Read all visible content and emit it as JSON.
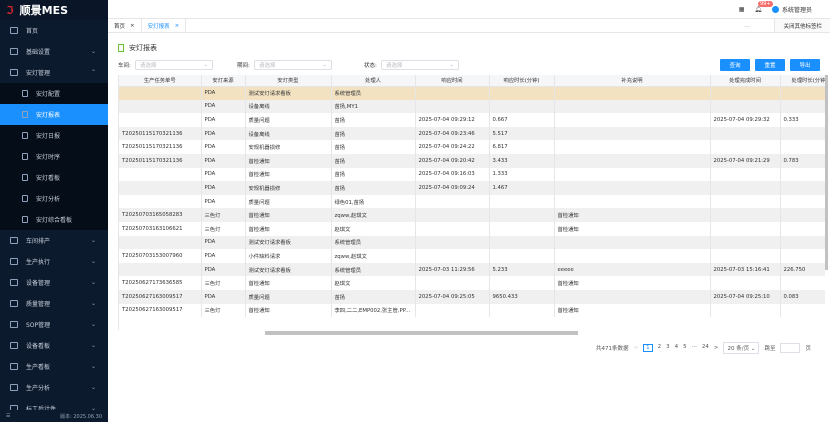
{
  "app": {
    "logo_text": "顺景MES",
    "version": "版本: 2025.06.30"
  },
  "sidebar": {
    "items": [
      {
        "label": "首页",
        "icon": "home-icon"
      },
      {
        "label": "基础设置",
        "icon": "settings-icon",
        "chevron": "⌄"
      },
      {
        "label": "安灯管理",
        "icon": "andon-icon",
        "chevron": "⌃"
      }
    ],
    "sub": [
      {
        "label": "安灯配置"
      },
      {
        "label": "安灯报表",
        "active": true
      },
      {
        "label": "安灯日报"
      },
      {
        "label": "安灯时序"
      },
      {
        "label": "安灯看板"
      },
      {
        "label": "安灯分析"
      },
      {
        "label": "安灯综合看板"
      }
    ],
    "items2": [
      {
        "label": "车间排产"
      },
      {
        "label": "生产执行"
      },
      {
        "label": "设备管理"
      },
      {
        "label": "质量管理"
      },
      {
        "label": "SOP管理"
      },
      {
        "label": "设备看板"
      },
      {
        "label": "生产看板"
      },
      {
        "label": "生产分析"
      },
      {
        "label": "标工后计件"
      }
    ]
  },
  "header": {
    "notif_badge": "99+",
    "user": "系统管理员"
  },
  "tabs": [
    {
      "label": "首页"
    },
    {
      "label": "安灯报表",
      "active": true
    }
  ],
  "tabs_more": "...",
  "close_others": "关闭其他标签栏",
  "page_title": "安灯报表",
  "filters": [
    {
      "label": "车间:",
      "placeholder": "请选择"
    },
    {
      "label": "期间:",
      "placeholder": "请选择"
    },
    {
      "label": "状态:",
      "placeholder": "请选择"
    }
  ],
  "buttons": {
    "query": "查询",
    "reset": "重置",
    "export": "导出"
  },
  "table": {
    "columns": [
      "生产任务单号",
      "安灯来源",
      "安灯类型",
      "处理人",
      "响应时间",
      "响应时长(分钟)",
      "补充说明",
      "处理完成时间",
      "处理时长(分钟)"
    ],
    "rows": [
      [
        "",
        "PDA",
        "测试安灯请求看板",
        "系统管理员",
        "",
        "",
        "",
        "",
        ""
      ],
      [
        "",
        "PDA",
        "设备离线",
        "苗扬,MY1",
        "",
        "",
        "",
        "",
        ""
      ],
      [
        "",
        "PDA",
        "质量问题",
        "苗扬",
        "2025-07-04 09:29:12",
        "0.667",
        "",
        "2025-07-04 09:29:32",
        "0.333"
      ],
      [
        "T20250115170321136",
        "PDA",
        "设备离线",
        "苗扬",
        "2025-07-04 09:23:46",
        "5.517",
        "",
        "",
        ""
      ],
      [
        "T20250115170321136",
        "PDA",
        "安规机器损修",
        "苗扬",
        "2025-07-04 09:24:22",
        "6.817",
        "",
        "",
        ""
      ],
      [
        "T20250115170321136",
        "PDA",
        "首检通知",
        "苗扬",
        "2025-07-04 09:20:42",
        "3.433",
        "",
        "2025-07-04 09:21:29",
        "0.783"
      ],
      [
        "",
        "PDA",
        "首检通知",
        "苗扬",
        "2025-07-04 09:16:03",
        "1.333",
        "",
        "",
        ""
      ],
      [
        "",
        "PDA",
        "安规机器损修",
        "苗扬",
        "2025-07-04 09:09:24",
        "1.467",
        "",
        "",
        ""
      ],
      [
        "",
        "PDA",
        "质量问题",
        "绿色01,苗扬",
        "",
        "",
        "",
        "",
        ""
      ],
      [
        "T20250703165058283",
        "三色灯",
        "首检通知",
        "zqww,赵琪文",
        "",
        "",
        "首检通知",
        "",
        ""
      ],
      [
        "T20250703163106621",
        "三色灯",
        "首检通知",
        "赵琪文",
        "",
        "",
        "首检通知",
        "",
        ""
      ],
      [
        "",
        "PDA",
        "测试安灯请求看板",
        "系统管理员",
        "",
        "",
        "",
        "",
        ""
      ],
      [
        "T20250703153007960",
        "PDA",
        "小件缺料请求",
        "zqww,赵琪文",
        "",
        "",
        "",
        "",
        ""
      ],
      [
        "",
        "PDA",
        "测试安灯请求看板",
        "系统管理员",
        "2025-07-03 11:29:56",
        "5.233",
        "eeeee",
        "2025-07-03 15:16:41",
        "226.750"
      ],
      [
        "T20250627173636585",
        "三色灯",
        "首检通知",
        "赵琪文",
        "",
        "",
        "首检通知",
        "",
        ""
      ],
      [
        "T20250627163009517",
        "PDA",
        "质量问题",
        "苗扬",
        "2025-07-04 09:25:05",
        "9650.433",
        "",
        "2025-07-04 09:25:10",
        "0.083"
      ],
      [
        "T20250627163009517",
        "三色灯",
        "首检通知",
        "李四,二二,EMP002,张主管,PP...",
        "",
        "",
        "首检通知",
        "",
        ""
      ]
    ]
  },
  "pagination": {
    "total": "共471条数据",
    "prev": "<",
    "pages": [
      "1",
      "2",
      "3",
      "4",
      "5",
      "···",
      "24"
    ],
    "current": "1",
    "next": ">",
    "page_size": "20 条/页",
    "goto": "跳至",
    "page_unit": "页"
  }
}
